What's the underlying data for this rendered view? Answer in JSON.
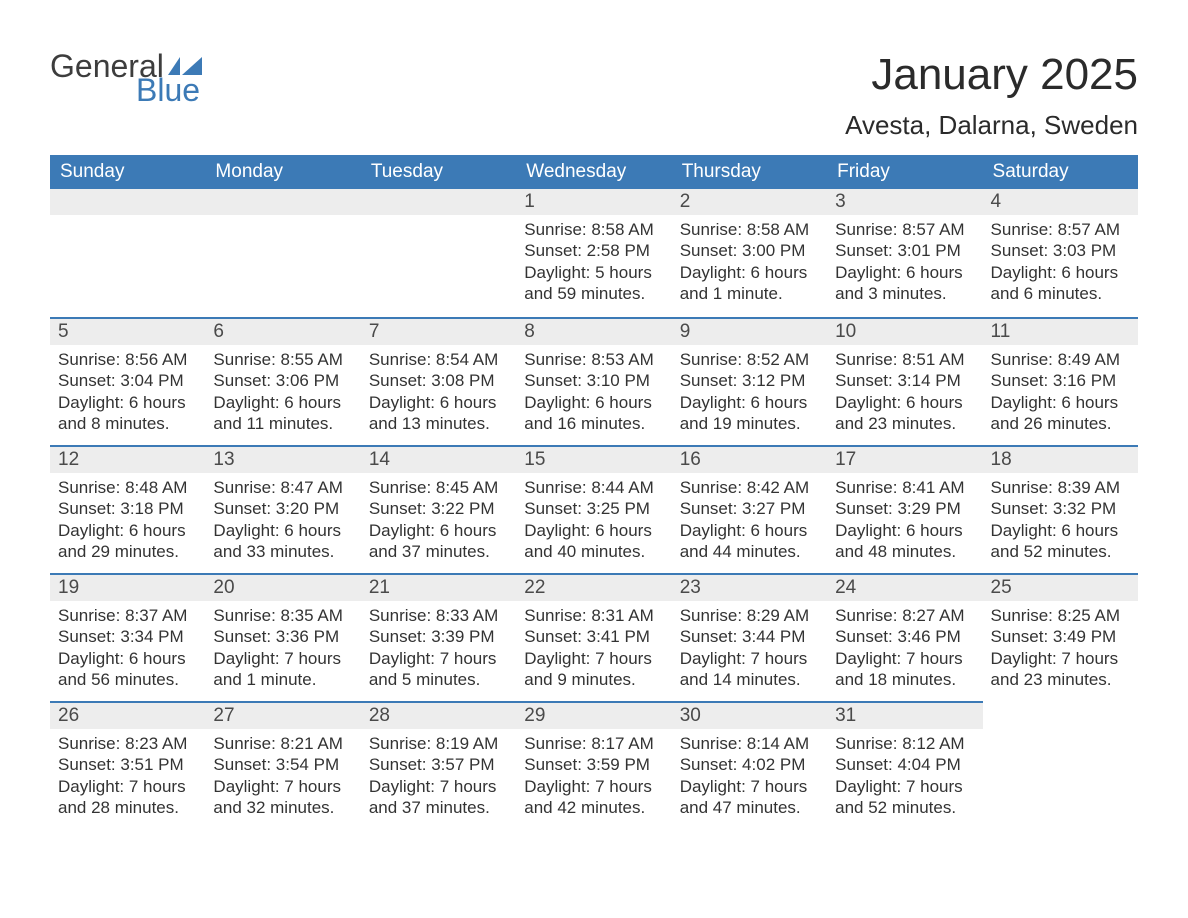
{
  "logo": {
    "word1": "General",
    "word2": "Blue",
    "flag_color": "#3c7ab6",
    "text_gray": "#3d3d3d"
  },
  "header": {
    "month_year": "January 2025",
    "location": "Avesta, Dalarna, Sweden"
  },
  "colors": {
    "header_bg": "#3c7ab6",
    "header_text": "#ffffff",
    "daybar_bg": "#ededed",
    "daybar_border": "#3c7ab6",
    "body_text": "#333333",
    "page_bg": "#ffffff"
  },
  "weekdays": [
    "Sunday",
    "Monday",
    "Tuesday",
    "Wednesday",
    "Thursday",
    "Friday",
    "Saturday"
  ],
  "weeks": [
    [
      null,
      null,
      null,
      {
        "n": "1",
        "sr": "Sunrise: 8:58 AM",
        "ss": "Sunset: 2:58 PM",
        "dl": "Daylight: 5 hours and 59 minutes."
      },
      {
        "n": "2",
        "sr": "Sunrise: 8:58 AM",
        "ss": "Sunset: 3:00 PM",
        "dl": "Daylight: 6 hours and 1 minute."
      },
      {
        "n": "3",
        "sr": "Sunrise: 8:57 AM",
        "ss": "Sunset: 3:01 PM",
        "dl": "Daylight: 6 hours and 3 minutes."
      },
      {
        "n": "4",
        "sr": "Sunrise: 8:57 AM",
        "ss": "Sunset: 3:03 PM",
        "dl": "Daylight: 6 hours and 6 minutes."
      }
    ],
    [
      {
        "n": "5",
        "sr": "Sunrise: 8:56 AM",
        "ss": "Sunset: 3:04 PM",
        "dl": "Daylight: 6 hours and 8 minutes."
      },
      {
        "n": "6",
        "sr": "Sunrise: 8:55 AM",
        "ss": "Sunset: 3:06 PM",
        "dl": "Daylight: 6 hours and 11 minutes."
      },
      {
        "n": "7",
        "sr": "Sunrise: 8:54 AM",
        "ss": "Sunset: 3:08 PM",
        "dl": "Daylight: 6 hours and 13 minutes."
      },
      {
        "n": "8",
        "sr": "Sunrise: 8:53 AM",
        "ss": "Sunset: 3:10 PM",
        "dl": "Daylight: 6 hours and 16 minutes."
      },
      {
        "n": "9",
        "sr": "Sunrise: 8:52 AM",
        "ss": "Sunset: 3:12 PM",
        "dl": "Daylight: 6 hours and 19 minutes."
      },
      {
        "n": "10",
        "sr": "Sunrise: 8:51 AM",
        "ss": "Sunset: 3:14 PM",
        "dl": "Daylight: 6 hours and 23 minutes."
      },
      {
        "n": "11",
        "sr": "Sunrise: 8:49 AM",
        "ss": "Sunset: 3:16 PM",
        "dl": "Daylight: 6 hours and 26 minutes."
      }
    ],
    [
      {
        "n": "12",
        "sr": "Sunrise: 8:48 AM",
        "ss": "Sunset: 3:18 PM",
        "dl": "Daylight: 6 hours and 29 minutes."
      },
      {
        "n": "13",
        "sr": "Sunrise: 8:47 AM",
        "ss": "Sunset: 3:20 PM",
        "dl": "Daylight: 6 hours and 33 minutes."
      },
      {
        "n": "14",
        "sr": "Sunrise: 8:45 AM",
        "ss": "Sunset: 3:22 PM",
        "dl": "Daylight: 6 hours and 37 minutes."
      },
      {
        "n": "15",
        "sr": "Sunrise: 8:44 AM",
        "ss": "Sunset: 3:25 PM",
        "dl": "Daylight: 6 hours and 40 minutes."
      },
      {
        "n": "16",
        "sr": "Sunrise: 8:42 AM",
        "ss": "Sunset: 3:27 PM",
        "dl": "Daylight: 6 hours and 44 minutes."
      },
      {
        "n": "17",
        "sr": "Sunrise: 8:41 AM",
        "ss": "Sunset: 3:29 PM",
        "dl": "Daylight: 6 hours and 48 minutes."
      },
      {
        "n": "18",
        "sr": "Sunrise: 8:39 AM",
        "ss": "Sunset: 3:32 PM",
        "dl": "Daylight: 6 hours and 52 minutes."
      }
    ],
    [
      {
        "n": "19",
        "sr": "Sunrise: 8:37 AM",
        "ss": "Sunset: 3:34 PM",
        "dl": "Daylight: 6 hours and 56 minutes."
      },
      {
        "n": "20",
        "sr": "Sunrise: 8:35 AM",
        "ss": "Sunset: 3:36 PM",
        "dl": "Daylight: 7 hours and 1 minute."
      },
      {
        "n": "21",
        "sr": "Sunrise: 8:33 AM",
        "ss": "Sunset: 3:39 PM",
        "dl": "Daylight: 7 hours and 5 minutes."
      },
      {
        "n": "22",
        "sr": "Sunrise: 8:31 AM",
        "ss": "Sunset: 3:41 PM",
        "dl": "Daylight: 7 hours and 9 minutes."
      },
      {
        "n": "23",
        "sr": "Sunrise: 8:29 AM",
        "ss": "Sunset: 3:44 PM",
        "dl": "Daylight: 7 hours and 14 minutes."
      },
      {
        "n": "24",
        "sr": "Sunrise: 8:27 AM",
        "ss": "Sunset: 3:46 PM",
        "dl": "Daylight: 7 hours and 18 minutes."
      },
      {
        "n": "25",
        "sr": "Sunrise: 8:25 AM",
        "ss": "Sunset: 3:49 PM",
        "dl": "Daylight: 7 hours and 23 minutes."
      }
    ],
    [
      {
        "n": "26",
        "sr": "Sunrise: 8:23 AM",
        "ss": "Sunset: 3:51 PM",
        "dl": "Daylight: 7 hours and 28 minutes."
      },
      {
        "n": "27",
        "sr": "Sunrise: 8:21 AM",
        "ss": "Sunset: 3:54 PM",
        "dl": "Daylight: 7 hours and 32 minutes."
      },
      {
        "n": "28",
        "sr": "Sunrise: 8:19 AM",
        "ss": "Sunset: 3:57 PM",
        "dl": "Daylight: 7 hours and 37 minutes."
      },
      {
        "n": "29",
        "sr": "Sunrise: 8:17 AM",
        "ss": "Sunset: 3:59 PM",
        "dl": "Daylight: 7 hours and 42 minutes."
      },
      {
        "n": "30",
        "sr": "Sunrise: 8:14 AM",
        "ss": "Sunset: 4:02 PM",
        "dl": "Daylight: 7 hours and 47 minutes."
      },
      {
        "n": "31",
        "sr": "Sunrise: 8:12 AM",
        "ss": "Sunset: 4:04 PM",
        "dl": "Daylight: 7 hours and 52 minutes."
      },
      null
    ]
  ]
}
